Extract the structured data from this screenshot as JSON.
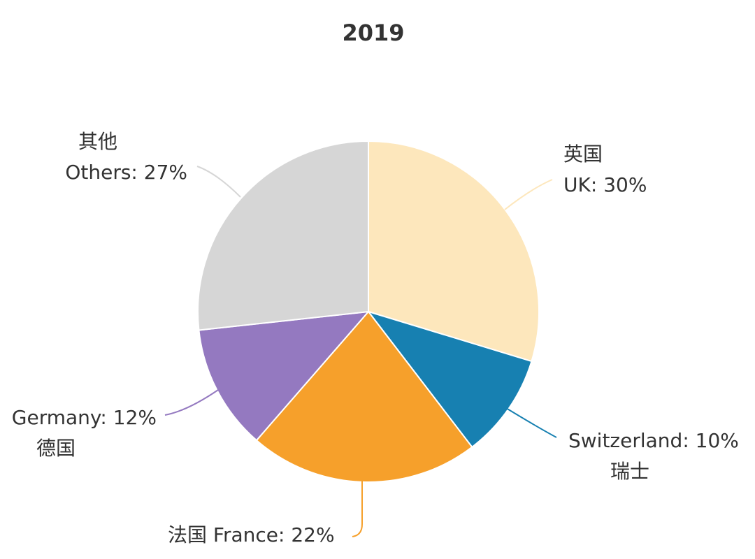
{
  "chart_data": {
    "type": "pie",
    "title": "2019",
    "start_angle_deg": 0,
    "direction": "clockwise",
    "slices": [
      {
        "name": "UK",
        "label_lines": [
          "英国",
          "UK: 30%"
        ],
        "value": 30,
        "color": "#fde7bc"
      },
      {
        "name": "Switzerland",
        "label_lines": [
          "Switzerland: 10%",
          "瑞士"
        ],
        "value": 10,
        "color": "#1780b1"
      },
      {
        "name": "France",
        "label_lines": [
          "法国 France: 22%"
        ],
        "value": 22,
        "color": "#f6a02b"
      },
      {
        "name": "Germany",
        "label_lines": [
          "Germany: 12%",
          "德国"
        ],
        "value": 12,
        "color": "#9479c0"
      },
      {
        "name": "Others",
        "label_lines": [
          "其他",
          "Others: 27%"
        ],
        "value": 27,
        "color": "#d6d6d6"
      }
    ],
    "legend": "none",
    "grid": false
  }
}
